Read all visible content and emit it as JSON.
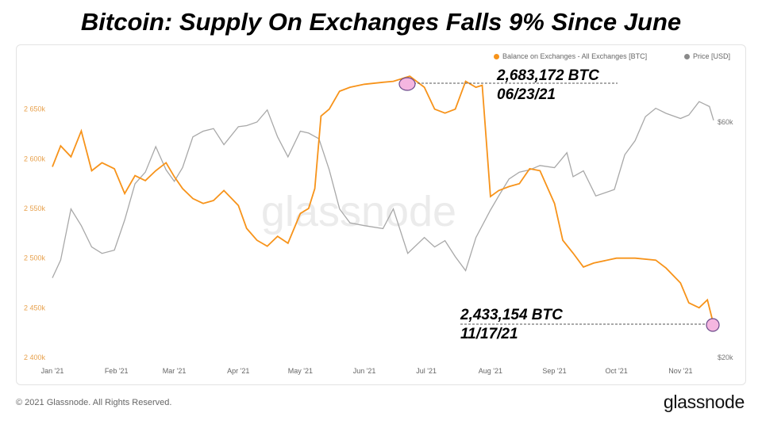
{
  "title": "Bitcoin: Supply On Exchanges Falls 9% Since June",
  "copyright": "© 2021 Glassnode. All Rights Reserved.",
  "brand": "glassnode",
  "watermark": "glassnode",
  "legend": [
    {
      "label": "Balance on Exchanges - All Exchanges [BTC]",
      "color": "#f7931a"
    },
    {
      "label": "Price [USD]",
      "color": "#8a8a8a"
    }
  ],
  "callouts": [
    {
      "value": "2,683,172 BTC",
      "date": "06/23/21"
    },
    {
      "value": "2,433,154 BTC",
      "date": "11/17/21"
    }
  ],
  "colors": {
    "balance": "#f7931a",
    "price": "#a8a8a8",
    "highlight": "#f4b6e0"
  },
  "chart_data": {
    "type": "line",
    "title": "Bitcoin: Supply On Exchanges Falls 9% Since June",
    "x_ticks": [
      "Jan '21",
      "Feb '21",
      "Mar '21",
      "Apr '21",
      "May '21",
      "Jun '21",
      "Jul '21",
      "Aug '21",
      "Sep '21",
      "Oct '21",
      "Nov '21"
    ],
    "y_left": {
      "ticks": [
        "2 400k",
        "2 450k",
        "2 500k",
        "2 550k",
        "2 600k",
        "2 650k"
      ],
      "range": [
        2400000,
        2700000
      ]
    },
    "y_right": {
      "ticks": [
        "$20k",
        "$60k"
      ],
      "scale": "log"
    },
    "grid": false,
    "legend_position": "top-right",
    "series": [
      {
        "name": "Balance on Exchanges - All Exchanges [BTC]",
        "axis": "left",
        "x": [
          "2021-01-01",
          "2021-01-05",
          "2021-01-10",
          "2021-01-15",
          "2021-01-20",
          "2021-01-25",
          "2021-01-31",
          "2021-02-05",
          "2021-02-10",
          "2021-02-15",
          "2021-02-20",
          "2021-02-25",
          "2021-03-01",
          "2021-03-05",
          "2021-03-10",
          "2021-03-15",
          "2021-03-20",
          "2021-03-25",
          "2021-04-01",
          "2021-04-05",
          "2021-04-10",
          "2021-04-15",
          "2021-04-20",
          "2021-04-25",
          "2021-05-01",
          "2021-05-05",
          "2021-05-08",
          "2021-05-11",
          "2021-05-15",
          "2021-05-20",
          "2021-05-25",
          "2021-06-01",
          "2021-06-10",
          "2021-06-15",
          "2021-06-23",
          "2021-06-30",
          "2021-07-05",
          "2021-07-10",
          "2021-07-15",
          "2021-07-20",
          "2021-07-25",
          "2021-07-28",
          "2021-08-01",
          "2021-08-05",
          "2021-08-10",
          "2021-08-15",
          "2021-08-20",
          "2021-08-25",
          "2021-09-01",
          "2021-09-05",
          "2021-09-10",
          "2021-09-15",
          "2021-09-20",
          "2021-10-01",
          "2021-10-10",
          "2021-10-20",
          "2021-10-25",
          "2021-11-01",
          "2021-11-05",
          "2021-11-10",
          "2021-11-14",
          "2021-11-17"
        ],
        "y": [
          2592000,
          2613000,
          2602000,
          2628000,
          2588000,
          2596000,
          2590000,
          2565000,
          2583000,
          2578000,
          2588000,
          2596000,
          2582000,
          2570000,
          2560000,
          2555000,
          2558000,
          2568000,
          2553000,
          2530000,
          2518000,
          2512000,
          2522000,
          2515000,
          2545000,
          2550000,
          2570000,
          2643000,
          2650000,
          2668000,
          2672000,
          2675000,
          2677000,
          2678000,
          2683172,
          2672000,
          2650000,
          2646000,
          2650000,
          2678000,
          2672000,
          2674000,
          2562000,
          2568000,
          2572000,
          2575000,
          2590000,
          2588000,
          2555000,
          2518000,
          2505000,
          2491000,
          2495000,
          2500000,
          2500000,
          2498000,
          2490000,
          2475000,
          2455000,
          2450000,
          2458000,
          2433154
        ]
      },
      {
        "name": "Price [USD]",
        "axis": "right",
        "x": [
          "2021-01-01",
          "2021-01-05",
          "2021-01-10",
          "2021-01-15",
          "2021-01-20",
          "2021-01-25",
          "2021-01-31",
          "2021-02-05",
          "2021-02-10",
          "2021-02-15",
          "2021-02-20",
          "2021-02-25",
          "2021-03-01",
          "2021-03-05",
          "2021-03-10",
          "2021-03-15",
          "2021-03-20",
          "2021-03-25",
          "2021-04-01",
          "2021-04-05",
          "2021-04-10",
          "2021-04-15",
          "2021-04-20",
          "2021-04-25",
          "2021-05-01",
          "2021-05-05",
          "2021-05-10",
          "2021-05-15",
          "2021-05-20",
          "2021-05-25",
          "2021-06-01",
          "2021-06-10",
          "2021-06-15",
          "2021-06-22",
          "2021-06-30",
          "2021-07-05",
          "2021-07-10",
          "2021-07-15",
          "2021-07-20",
          "2021-07-25",
          "2021-08-01",
          "2021-08-05",
          "2021-08-10",
          "2021-08-15",
          "2021-08-20",
          "2021-08-25",
          "2021-09-01",
          "2021-09-07",
          "2021-09-10",
          "2021-09-15",
          "2021-09-21",
          "2021-09-30",
          "2021-10-05",
          "2021-10-10",
          "2021-10-15",
          "2021-10-20",
          "2021-10-25",
          "2021-11-01",
          "2021-11-05",
          "2021-11-10",
          "2021-11-15",
          "2021-11-17"
        ],
        "y": [
          29000,
          31500,
          40000,
          37000,
          33500,
          32500,
          33000,
          38000,
          45000,
          47500,
          53500,
          48000,
          45500,
          48500,
          56000,
          57500,
          58200,
          54000,
          58700,
          59000,
          60000,
          63500,
          56000,
          51000,
          57500,
          57000,
          55500,
          48000,
          40000,
          37500,
          37000,
          36500,
          40000,
          32500,
          35000,
          33500,
          34500,
          32000,
          30000,
          35000,
          39800,
          42500,
          46000,
          47500,
          48000,
          49000,
          48500,
          52000,
          46500,
          47800,
          42500,
          43800,
          51500,
          55000,
          61500,
          64000,
          62500,
          61000,
          62000,
          66000,
          64500,
          60500
        ]
      }
    ]
  }
}
